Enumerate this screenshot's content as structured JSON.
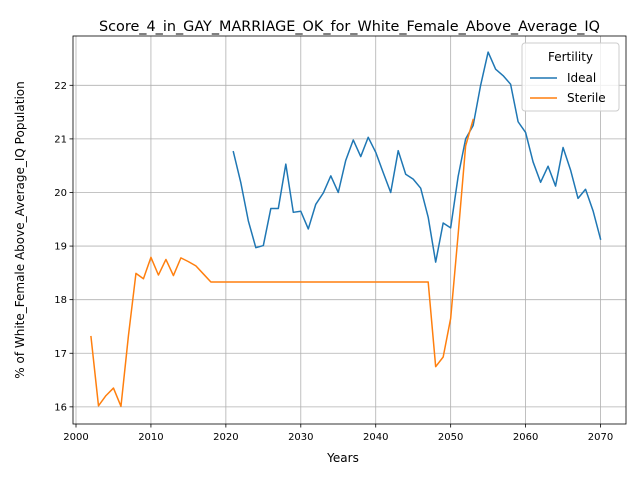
{
  "chart_data": {
    "type": "line",
    "title": "Score_4_in_GAY_MARRIAGE_OK_for_White_Female_Above_Average_IQ",
    "xlabel": "Years",
    "ylabel": "% of White_Female Above_Average_IQ Population",
    "xlim": [
      1999.6,
      2073.4
    ],
    "ylim": [
      15.68,
      22.92
    ],
    "xticks": [
      2000,
      2010,
      2020,
      2030,
      2040,
      2050,
      2060,
      2070
    ],
    "yticks": [
      16,
      17,
      18,
      19,
      20,
      21,
      22
    ],
    "grid": true,
    "legend": {
      "title": "Fertility",
      "placement": "top-right"
    },
    "series": [
      {
        "name": "Ideal",
        "color": "#1f77b4",
        "x": [
          2021,
          2022,
          2023,
          2024,
          2025,
          2026,
          2027,
          2028,
          2029,
          2030,
          2031,
          2032,
          2033,
          2034,
          2035,
          2036,
          2037,
          2038,
          2039,
          2040,
          2041,
          2042,
          2043,
          2044,
          2045,
          2046,
          2047,
          2048,
          2049,
          2050,
          2051,
          2052,
          2053,
          2054,
          2055,
          2056,
          2057,
          2058,
          2059,
          2060,
          2061,
          2062,
          2063,
          2064,
          2065,
          2066,
          2067,
          2068,
          2069,
          2070
        ],
        "y": [
          20.76,
          20.18,
          19.47,
          18.97,
          19.01,
          19.7,
          19.7,
          20.53,
          19.63,
          19.65,
          19.32,
          19.78,
          19.99,
          20.31,
          20.0,
          20.6,
          20.98,
          20.67,
          21.03,
          20.75,
          20.37,
          20.0,
          20.78,
          20.34,
          20.25,
          20.08,
          19.54,
          18.7,
          19.43,
          19.34,
          20.3,
          21.0,
          21.25,
          22.0,
          22.62,
          22.3,
          22.18,
          22.02,
          21.32,
          21.12,
          20.57,
          20.19,
          20.49,
          20.12,
          20.84,
          20.42,
          19.89,
          20.06,
          19.66,
          19.13
        ]
      },
      {
        "name": "Sterile",
        "color": "#ff7f0e",
        "x": [
          2002,
          2003,
          2004,
          2005,
          2006,
          2007,
          2008,
          2009,
          2010,
          2011,
          2012,
          2013,
          2014,
          2015,
          2016,
          2017,
          2018,
          2019,
          2020,
          2021,
          2022,
          2023,
          2024,
          2025,
          2026,
          2027,
          2028,
          2029,
          2030,
          2031,
          2032,
          2033,
          2034,
          2035,
          2036,
          2037,
          2038,
          2039,
          2040,
          2041,
          2042,
          2043,
          2044,
          2045,
          2046,
          2047,
          2048,
          2049,
          2050,
          2051,
          2052,
          2053
        ],
        "y": [
          17.31,
          16.02,
          16.21,
          16.35,
          16.01,
          17.33,
          18.49,
          18.39,
          18.79,
          18.46,
          18.75,
          18.45,
          18.78,
          18.71,
          18.63,
          18.48,
          18.33,
          18.33,
          18.33,
          18.33,
          18.33,
          18.33,
          18.33,
          18.33,
          18.33,
          18.33,
          18.33,
          18.33,
          18.33,
          18.33,
          18.33,
          18.33,
          18.33,
          18.33,
          18.33,
          18.33,
          18.33,
          18.33,
          18.33,
          18.33,
          18.33,
          18.33,
          18.33,
          18.33,
          18.33,
          18.33,
          16.75,
          16.93,
          17.65,
          19.22,
          20.87,
          21.36
        ]
      }
    ]
  }
}
